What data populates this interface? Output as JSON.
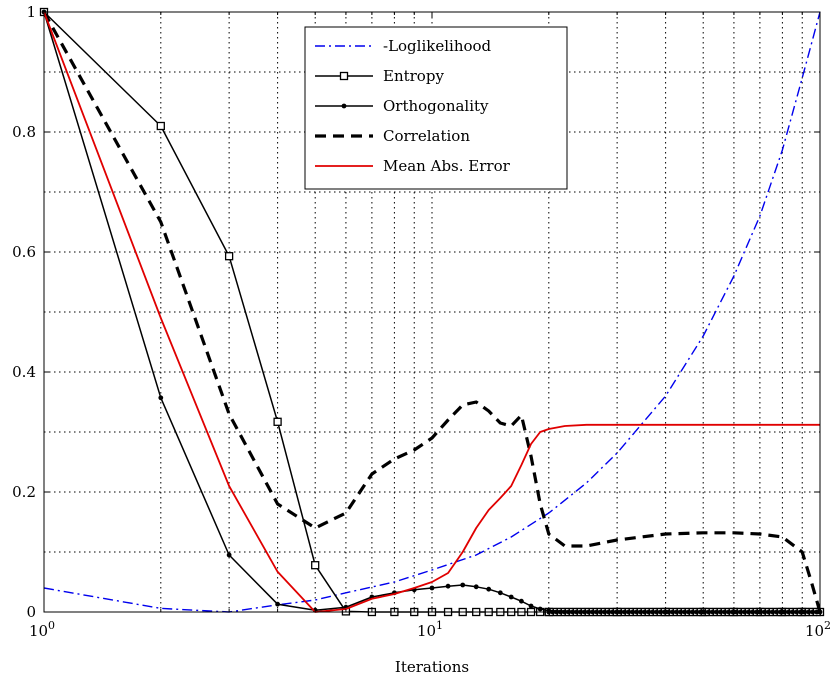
{
  "chart_data": {
    "type": "line",
    "xscale": "log",
    "xlim": [
      1,
      100
    ],
    "ylim": [
      0,
      1
    ],
    "grid": true,
    "legend_position": "top-center",
    "xlabel": "Iterations",
    "ylabel": "",
    "x_ticks": [
      {
        "value": 1,
        "base": "10",
        "exp": "0"
      },
      {
        "value": 10,
        "base": "10",
        "exp": "1"
      },
      {
        "value": 100,
        "base": "10",
        "exp": "2"
      }
    ],
    "y_ticks": [
      {
        "value": 0,
        "label": "0"
      },
      {
        "value": 0.2,
        "label": "0.2"
      },
      {
        "value": 0.4,
        "label": "0.4"
      },
      {
        "value": 0.6,
        "label": "0.6"
      },
      {
        "value": 0.8,
        "label": "0.8"
      },
      {
        "value": 1,
        "label": "1"
      }
    ],
    "series": [
      {
        "name": "-Loglikelihood",
        "color": "#0000ee",
        "style": "dashdot",
        "x": [
          1,
          2,
          3,
          4,
          5,
          6,
          8,
          10,
          13,
          16,
          20,
          25,
          30,
          40,
          50,
          60,
          70,
          80,
          90,
          100
        ],
        "y": [
          0.04,
          0.006,
          0.0,
          0.012,
          0.02,
          0.032,
          0.05,
          0.07,
          0.095,
          0.125,
          0.165,
          0.215,
          0.265,
          0.36,
          0.46,
          0.56,
          0.66,
          0.77,
          0.89,
          1.0
        ]
      },
      {
        "name": "Entropy",
        "color": "#000000",
        "style": "solid-square",
        "x": [
          1,
          2,
          3,
          4,
          5,
          6,
          7,
          8,
          9,
          10,
          11,
          12,
          13,
          14,
          15,
          16,
          17,
          18,
          19,
          20,
          30,
          40,
          50,
          60,
          70,
          80,
          90,
          100
        ],
        "y": [
          1.0,
          0.81,
          0.593,
          0.317,
          0.078,
          0.001,
          0.0,
          0.0,
          0.0,
          0.0,
          0.0,
          0.0,
          0.0,
          0.0,
          0.0,
          0.0,
          0.0,
          0.0,
          0.0,
          0.0,
          0.0,
          0.0,
          0.0,
          0.0,
          0.0,
          0.0,
          0.0,
          0.0
        ]
      },
      {
        "name": "Orthogonality",
        "color": "#000000",
        "style": "solid-dot",
        "x": [
          1,
          2,
          3,
          4,
          5,
          6,
          7,
          8,
          9,
          10,
          11,
          12,
          13,
          14,
          15,
          16,
          17,
          18,
          19,
          20,
          30,
          40,
          50,
          60,
          70,
          80,
          90,
          100
        ],
        "y": [
          1.0,
          0.357,
          0.095,
          0.013,
          0.003,
          0.008,
          0.025,
          0.032,
          0.037,
          0.04,
          0.043,
          0.045,
          0.042,
          0.038,
          0.032,
          0.025,
          0.018,
          0.01,
          0.005,
          0.002,
          0.0,
          0.0,
          0.0,
          0.0,
          0.0,
          0.0,
          0.0,
          0.0
        ]
      },
      {
        "name": "Correlation",
        "color": "#000000",
        "style": "dashed-thick",
        "x": [
          1,
          2,
          3,
          4,
          5,
          6,
          7,
          8,
          9,
          10,
          11,
          12,
          13,
          14,
          15,
          16,
          17,
          18,
          19,
          20,
          22,
          25,
          30,
          40,
          50,
          60,
          70,
          80,
          90,
          95,
          100
        ],
        "y": [
          1.0,
          0.65,
          0.33,
          0.18,
          0.14,
          0.165,
          0.23,
          0.255,
          0.27,
          0.29,
          0.32,
          0.345,
          0.35,
          0.335,
          0.315,
          0.31,
          0.328,
          0.26,
          0.18,
          0.13,
          0.11,
          0.11,
          0.12,
          0.13,
          0.132,
          0.132,
          0.13,
          0.125,
          0.1,
          0.05,
          0.0
        ]
      },
      {
        "name": "Mean Abs. Error",
        "color": "#e00000",
        "style": "solid",
        "x": [
          1,
          2,
          3,
          4,
          5,
          6,
          7,
          8,
          9,
          10,
          11,
          12,
          13,
          14,
          15,
          16,
          17,
          18,
          19,
          20,
          22,
          25,
          30,
          40,
          50,
          60,
          70,
          80,
          90,
          100
        ],
        "y": [
          1.0,
          0.49,
          0.21,
          0.067,
          0.0,
          0.005,
          0.022,
          0.03,
          0.04,
          0.05,
          0.065,
          0.1,
          0.14,
          0.17,
          0.19,
          0.21,
          0.245,
          0.28,
          0.3,
          0.305,
          0.31,
          0.312,
          0.312,
          0.312,
          0.312,
          0.312,
          0.312,
          0.312,
          0.312,
          0.312
        ]
      }
    ]
  }
}
